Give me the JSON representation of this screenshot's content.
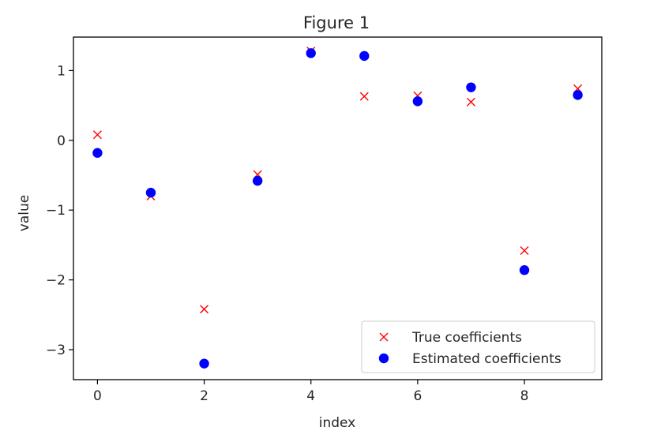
{
  "chart_data": {
    "type": "scatter",
    "title": "Figure 1",
    "xlabel": "index",
    "ylabel": "value",
    "xlim": [
      -0.45,
      9.45
    ],
    "ylim": [
      -3.43,
      1.48
    ],
    "xticks": [
      0,
      2,
      4,
      6,
      8
    ],
    "xtick_labels": [
      "0",
      "2",
      "4",
      "6",
      "8"
    ],
    "yticks": [
      -3,
      -2,
      -1,
      0,
      1
    ],
    "ytick_labels": [
      "−3",
      "−2",
      "−1",
      "0",
      "1"
    ],
    "grid": false,
    "legend_position": "lower-right",
    "series": [
      {
        "name": "True coefficients",
        "marker": "x",
        "color": "#ff0000",
        "x": [
          0,
          1,
          2,
          3,
          4,
          5,
          6,
          7,
          8,
          9
        ],
        "y": [
          0.08,
          -0.8,
          -2.42,
          -0.49,
          1.28,
          0.63,
          0.64,
          0.55,
          -1.58,
          0.74
        ]
      },
      {
        "name": "Estimated coefficients",
        "marker": "o",
        "color": "#0000ff",
        "x": [
          0,
          1,
          2,
          3,
          4,
          5,
          6,
          7,
          8,
          9
        ],
        "y": [
          -0.18,
          -0.75,
          -3.2,
          -0.58,
          1.25,
          1.21,
          0.56,
          0.76,
          -1.86,
          0.65
        ]
      }
    ]
  }
}
